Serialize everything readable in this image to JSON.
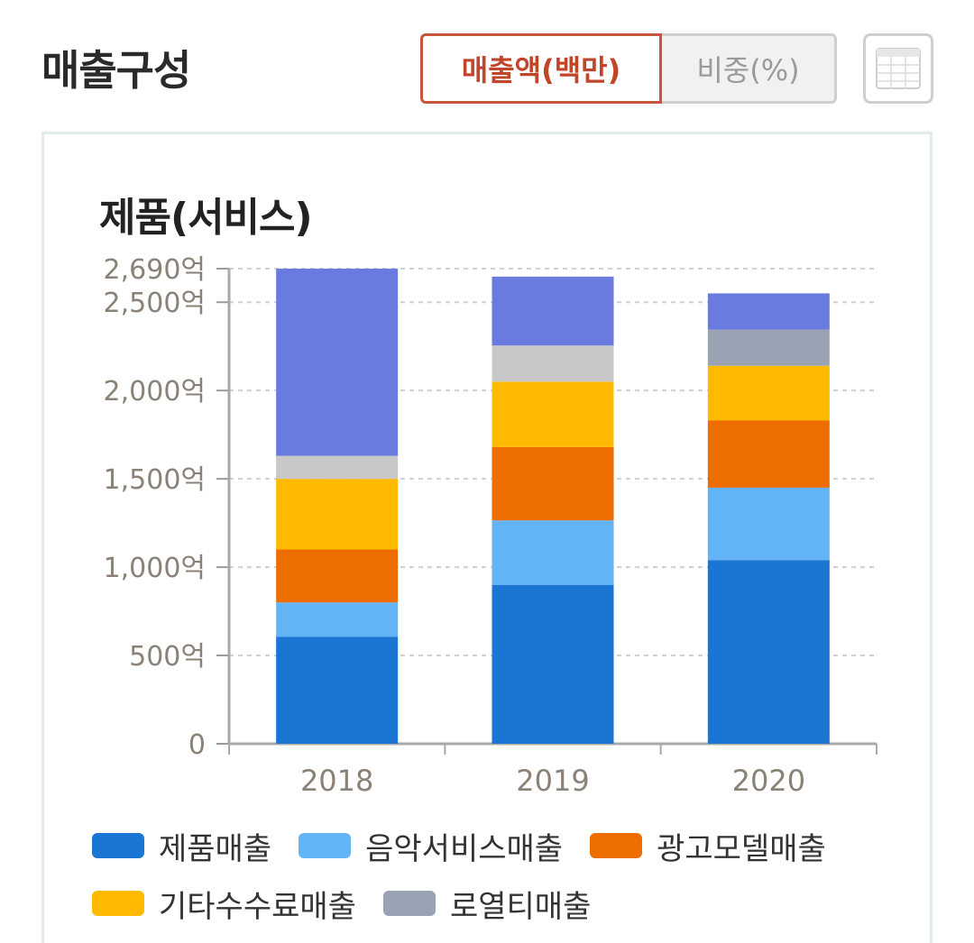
{
  "header": {
    "title": "매출구성",
    "toggle_amount": "매출액(백만)",
    "toggle_ratio": "비중(%)"
  },
  "chart_title": "제품(서비스)",
  "chart_data": {
    "type": "bar",
    "stacked": true,
    "categories": [
      "2018",
      "2019",
      "2020"
    ],
    "y_tick_labels": [
      "0",
      "500억",
      "1,000억",
      "1,500억",
      "2,000억",
      "2,500억",
      "2,690억"
    ],
    "y_ticks": [
      0,
      500,
      1000,
      1500,
      2000,
      2500,
      2690
    ],
    "ylim": [
      0,
      2690
    ],
    "ylabel": "",
    "xlabel": "",
    "grid": true,
    "legend_position": "bottom",
    "series": [
      {
        "name": "제품매출",
        "color": "#1b76d3",
        "values": [
          605,
          900,
          1040
        ]
      },
      {
        "name": "음악서비스매출",
        "color": "#62b4f5",
        "values": [
          195,
          365,
          410
        ]
      },
      {
        "name": "광고모델매출",
        "color": "#ee6d00",
        "values": [
          300,
          415,
          380
        ]
      },
      {
        "name": "기타수수료매출",
        "color": "#ffba00",
        "values": [
          400,
          370,
          310
        ]
      },
      {
        "name": "로열티매출",
        "color": "#99a3b4",
        "values": [
          0,
          0,
          205
        ]
      },
      {
        "name": "",
        "color": "#c8c8c8",
        "values": [
          130,
          205,
          0
        ]
      },
      {
        "name": "",
        "color": "#6a7be0",
        "values": [
          1060,
          390,
          205
        ]
      }
    ]
  },
  "legend": {
    "row1": [
      "제품매출",
      "음악서비스매출",
      "광고모델매출"
    ],
    "row2": [
      "기타수수료매출",
      "로열티매출"
    ],
    "colors": {
      "제품매출": "#1b76d3",
      "음악서비스매출": "#62b4f5",
      "광고모델매출": "#ee6d00",
      "기타수수료매출": "#ffba00",
      "로열티매출": "#99a3b4"
    }
  }
}
